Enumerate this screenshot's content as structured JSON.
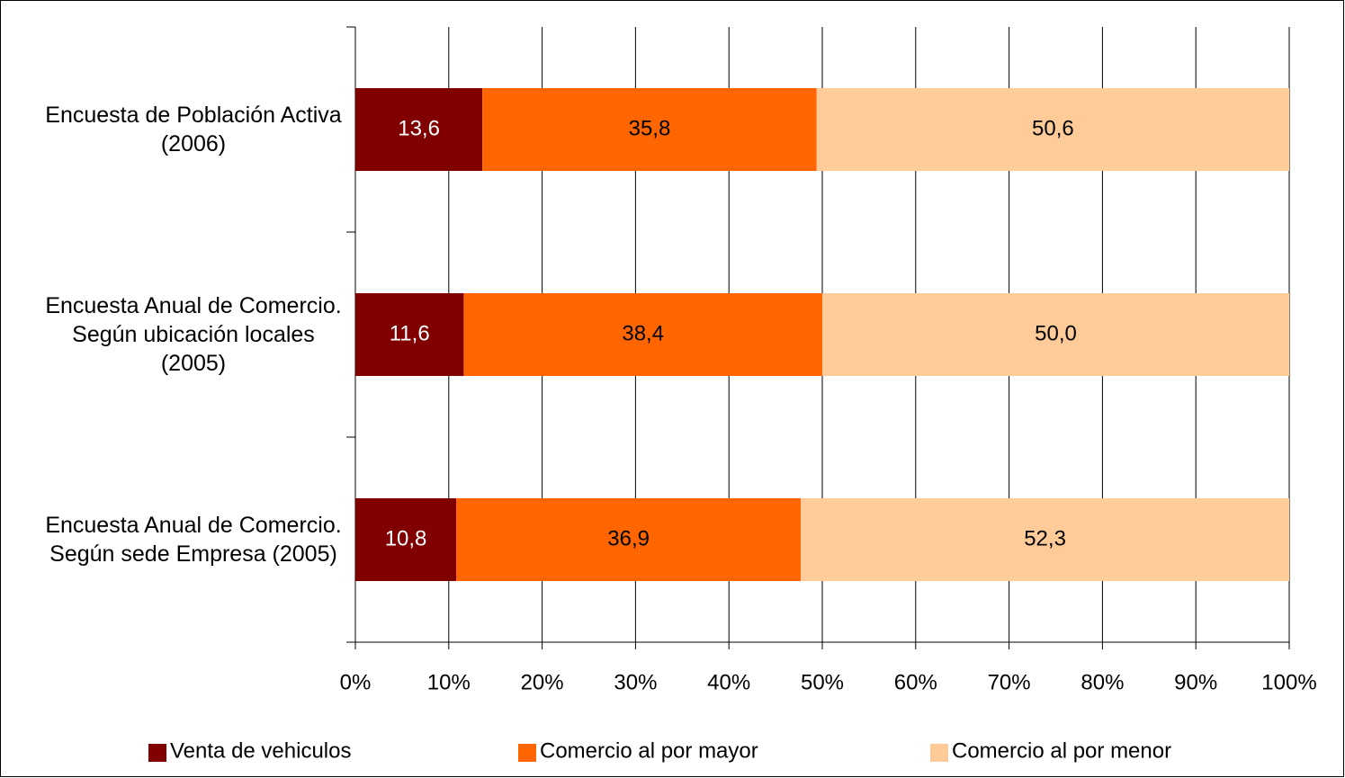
{
  "chart_data": {
    "type": "stacked-bar-horizontal",
    "categories": [
      "Encuesta de Población Activa (2006)",
      "Encuesta Anual de Comercio. Según ubicación locales (2005)",
      "Encuesta Anual de Comercio. Según sede Empresa (2005)"
    ],
    "series": [
      {
        "name": "Venta de vehiculos",
        "color": "#800000",
        "values": [
          13.6,
          11.6,
          10.8
        ],
        "value_labels": [
          "13,6",
          "11,6",
          "10,8"
        ]
      },
      {
        "name": "Comercio al por mayor",
        "color": "#ff6600",
        "values": [
          35.8,
          38.4,
          36.9
        ],
        "value_labels": [
          "35,8",
          "38,4",
          "36,9"
        ]
      },
      {
        "name": "Comercio al por menor",
        "color": "#ffcc99",
        "values": [
          50.6,
          50.0,
          52.3
        ],
        "value_labels": [
          "50,6",
          "50,0",
          "52,3"
        ]
      }
    ],
    "xlim": [
      0,
      100
    ],
    "xticks": [
      {
        "value": 0,
        "label": "0%"
      },
      {
        "value": 10,
        "label": "10%"
      },
      {
        "value": 20,
        "label": "20%"
      },
      {
        "value": 30,
        "label": "30%"
      },
      {
        "value": 40,
        "label": "40%"
      },
      {
        "value": 50,
        "label": "50%"
      },
      {
        "value": 60,
        "label": "60%"
      },
      {
        "value": 70,
        "label": "70%"
      },
      {
        "value": 80,
        "label": "80%"
      },
      {
        "value": 90,
        "label": "90%"
      },
      {
        "value": 100,
        "label": "100%"
      }
    ],
    "grid": true,
    "legend": "bottom"
  }
}
